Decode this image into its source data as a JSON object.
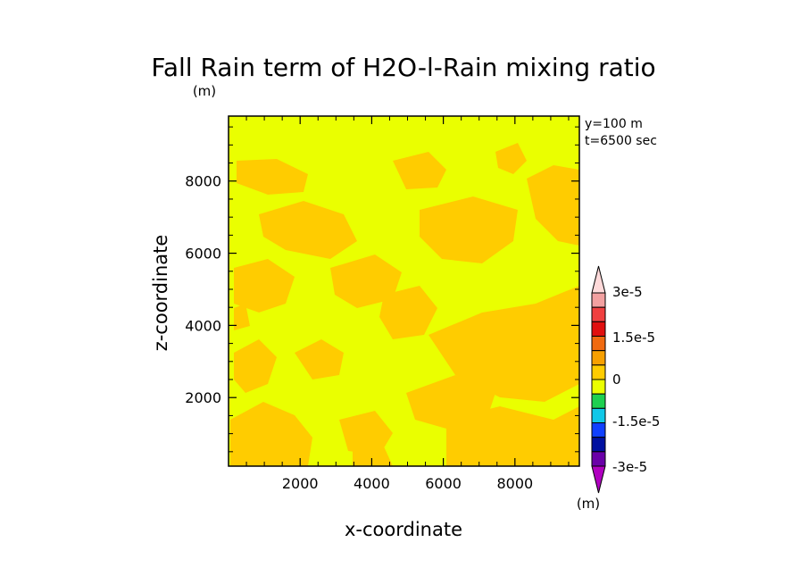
{
  "chart_data": {
    "type": "heatmap",
    "title": "Fall Rain term of H2O-l-Rain mixing ratio",
    "title_units": "(m)",
    "xlabel": "x-coordinate",
    "ylabel": "z-coordinate",
    "annotations": [
      "y=100 m",
      "t=6500 sec"
    ],
    "xlim": [
      0,
      9800
    ],
    "ylim": [
      100,
      9800
    ],
    "x_ticks": [
      2000,
      4000,
      6000,
      8000
    ],
    "y_ticks": [
      2000,
      4000,
      6000,
      8000
    ],
    "background_value": "0 to 7.5e-6",
    "background_color": "#eaff00",
    "feature_value": "7.5e-6 to 1.5e-5",
    "feature_color": "#ffcc00",
    "colorbar": {
      "units": "(m)",
      "labels": [
        "3e-5",
        "1.5e-5",
        "0",
        "-1.5e-5",
        "-3e-5"
      ],
      "colors_top_to_bottom": [
        "#ffdada",
        "#f2a0a0",
        "#f04040",
        "#e01010",
        "#f06a10",
        "#f7a000",
        "#ffcc00",
        "#eaff00",
        "#1ed050",
        "#10c8e8",
        "#1040ff",
        "#0010a0",
        "#6a00a8",
        "#b000c0"
      ]
    }
  }
}
